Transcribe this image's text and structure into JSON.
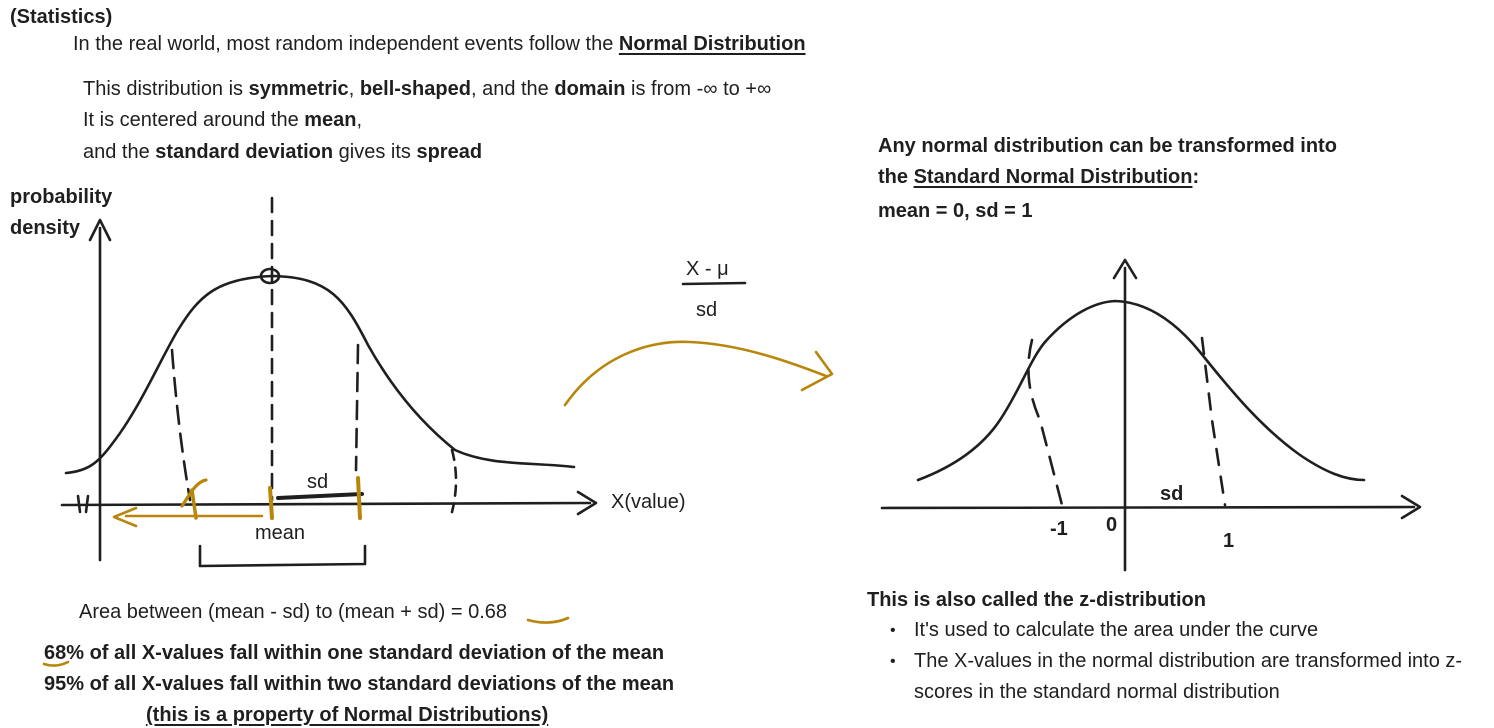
{
  "colors": {
    "ink": "#1f1f1f",
    "gold": "#b8860b"
  },
  "header": {
    "category": "(Statistics)"
  },
  "intro": {
    "line1_pre": "In the real world, most random independent events follow the ",
    "line1_link": "Normal Distribution",
    "desc1_a": "This distribution is ",
    "desc1_b": "symmetric",
    "desc1_c": ", ",
    "desc1_d": "bell-shaped",
    "desc1_e": ", and the ",
    "desc1_f": "domain",
    "desc1_g": " is from -∞ to +∞",
    "desc2_a": "It is centered around the ",
    "desc2_b": "mean",
    "desc2_c": ",",
    "desc3_a": "and the ",
    "desc3_b": "standard deviation",
    "desc3_c": " gives its ",
    "desc3_d": "spread"
  },
  "left_graph": {
    "y_label_1": "probability",
    "y_label_2": "density",
    "x_label": "X(value)",
    "sd_label": "sd",
    "mean_label": "mean"
  },
  "transform": {
    "numerator": "X - μ",
    "denominator": "sd"
  },
  "right_section": {
    "heading1": "Any normal distribution can be transformed into",
    "heading2_a": "the ",
    "heading2_link": "Standard Normal Distribution",
    "heading2_b": ":",
    "heading3": "mean = 0, sd = 1",
    "sd_label": "sd",
    "tick_minus1": "-1",
    "tick_zero": "0",
    "tick_one": "1"
  },
  "area_note": {
    "text": "Area between (mean - sd) to (mean + sd)  =  ",
    "value": "0.68"
  },
  "facts": {
    "line1": "68% of all X-values fall within one standard deviation of the mean",
    "line2": "95% of all X-values fall within two standard deviations of the mean",
    "line3": "(this is a property of Normal Distributions)"
  },
  "z_note": {
    "heading": "This is also called the z-distribution",
    "bullets": [
      "It's used to calculate the area under the curve",
      "The X-values in the normal distribution are transformed into z-scores in the standard normal distribution"
    ]
  }
}
